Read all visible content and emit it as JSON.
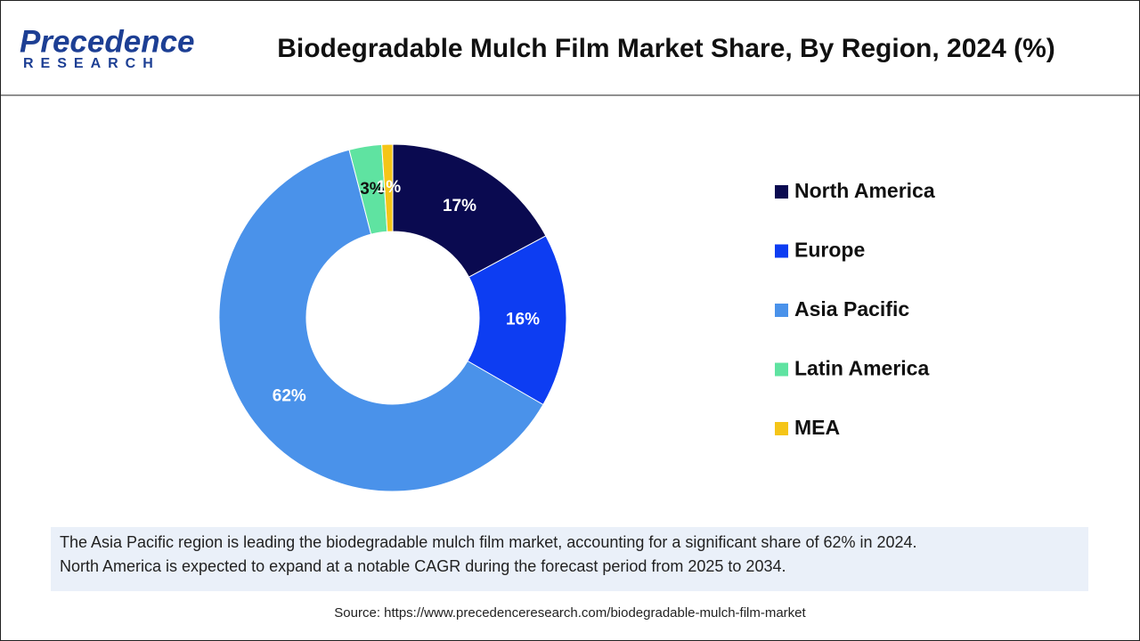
{
  "header": {
    "logo_top": "Precedence",
    "logo_bottom": "RESEARCH"
  },
  "chart_data": {
    "type": "donut",
    "title": "Biodegradable Mulch Film Market Share, By Region, 2024 (%)",
    "categories": [
      "North America",
      "Europe",
      "Asia Pacific",
      "Latin America",
      "MEA"
    ],
    "values": [
      17,
      16,
      62,
      3,
      1
    ],
    "value_labels": [
      "17%",
      "16%",
      "62%",
      "3%",
      "1%"
    ],
    "colors": [
      "#0a0a50",
      "#0d3df2",
      "#4a92ea",
      "#5fe3a1",
      "#f5c518"
    ],
    "legend": "right"
  },
  "footer": {
    "description": [
      "The Asia Pacific region is leading the biodegradable mulch film market, accounting for a significant share of 62% in 2024.",
      "North America is expected to expand at a notable CAGR during the forecast period from 2025 to 2034."
    ],
    "source": "Source: https://www.precedenceresearch.com/biodegradable-mulch-film-market"
  }
}
